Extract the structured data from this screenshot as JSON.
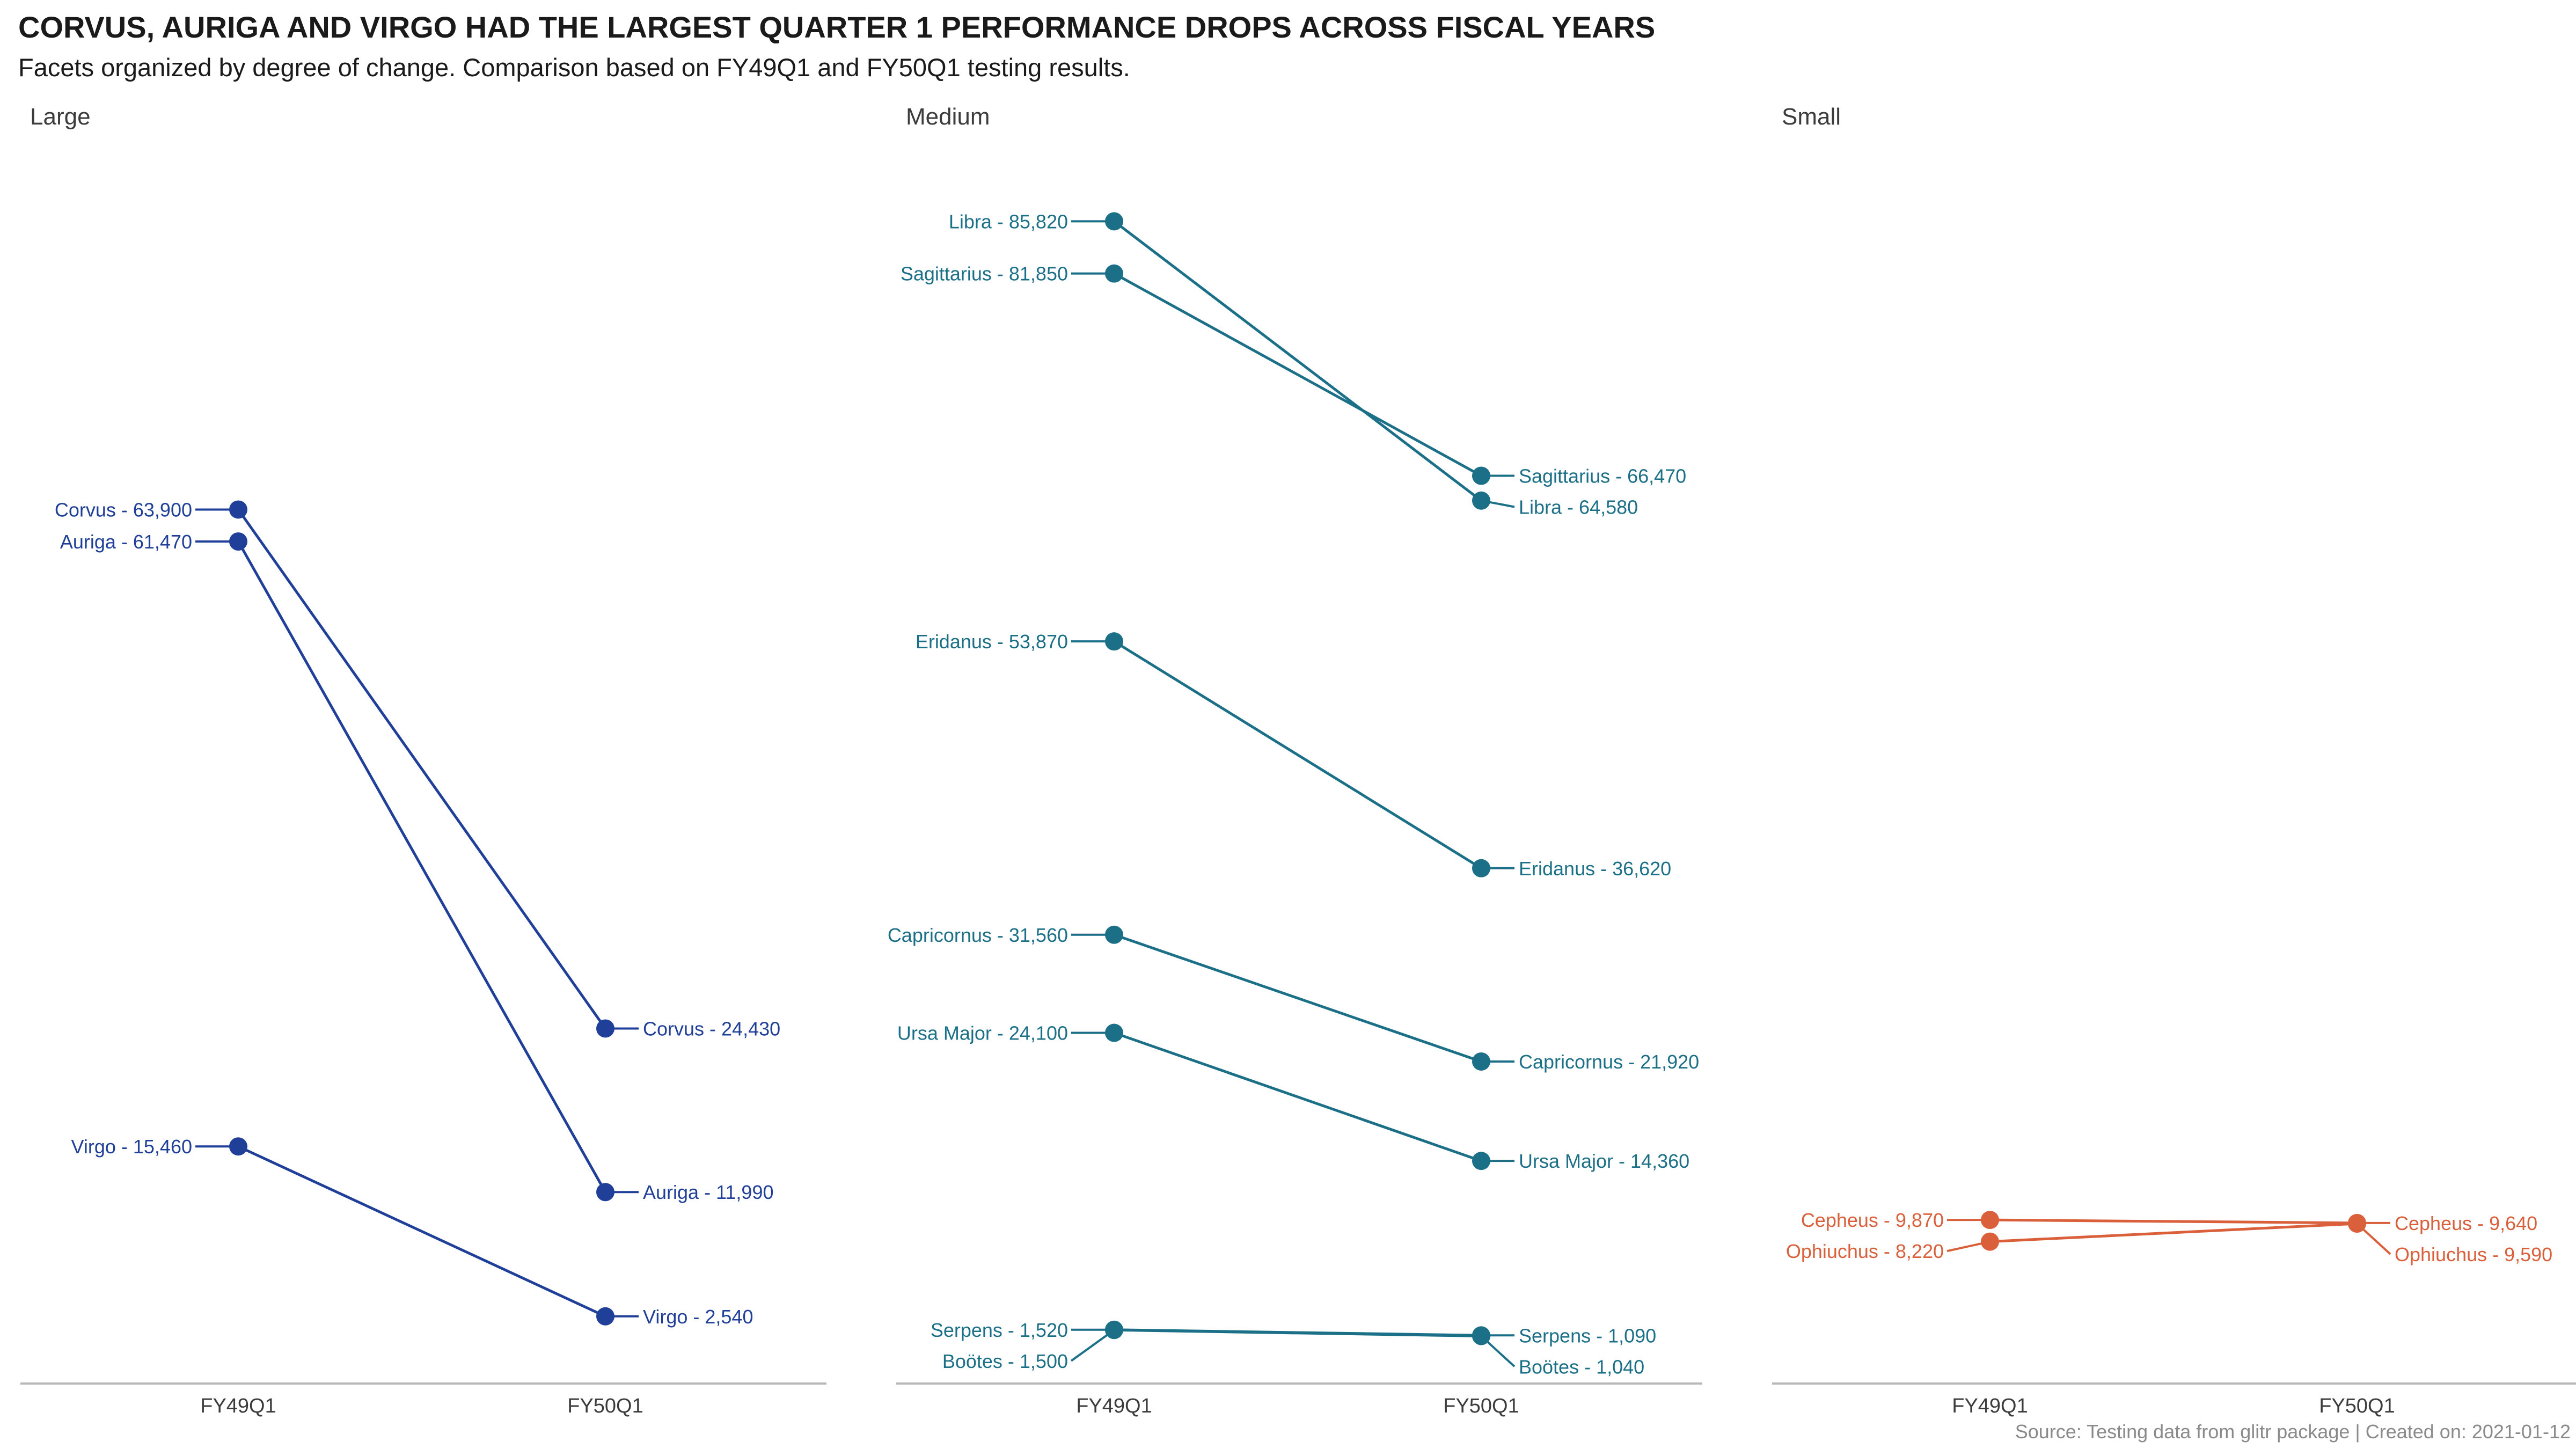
{
  "chart_data": {
    "type": "line",
    "title": "CORVUS, AURIGA AND VIRGO HAD THE LARGEST QUARTER 1 PERFORMANCE DROPS ACROSS FISCAL YEARS",
    "subtitle": "Facets organized by degree of change. Comparison based on FY49Q1 and FY50Q1 testing results.",
    "caption": "Source: Testing data from glitr package | Created on: 2021-01-12",
    "categories": [
      "FY49Q1",
      "FY50Q1"
    ],
    "ylim": [
      0,
      90000
    ],
    "grid": false,
    "facets": [
      {
        "name": "Large",
        "color": "#1f3f99",
        "series": [
          {
            "name": "Corvus",
            "values": [
              63900,
              24430
            ],
            "labels": [
              "Corvus - 63,900",
              "Corvus - 24,430"
            ]
          },
          {
            "name": "Auriga",
            "values": [
              61470,
              11990
            ],
            "labels": [
              "Auriga - 61,470",
              "Auriga - 11,990"
            ]
          },
          {
            "name": "Virgo",
            "values": [
              15460,
              2540
            ],
            "labels": [
              "Virgo - 15,460",
              "Virgo - 2,540"
            ]
          }
        ]
      },
      {
        "name": "Medium",
        "color": "#1b7088",
        "series": [
          {
            "name": "Libra",
            "values": [
              85820,
              64580
            ],
            "labels": [
              "Libra - 85,820",
              "Libra - 64,580"
            ]
          },
          {
            "name": "Sagittarius",
            "values": [
              81850,
              66470
            ],
            "labels": [
              "Sagittarius - 81,850",
              "Sagittarius - 66,470"
            ]
          },
          {
            "name": "Eridanus",
            "values": [
              53870,
              36620
            ],
            "labels": [
              "Eridanus - 53,870",
              "Eridanus - 36,620"
            ]
          },
          {
            "name": "Capricornus",
            "values": [
              31560,
              21920
            ],
            "labels": [
              "Capricornus - 31,560",
              "Capricornus - 21,920"
            ]
          },
          {
            "name": "Ursa Major",
            "values": [
              24100,
              14360
            ],
            "labels": [
              "Ursa Major - 24,100",
              "Ursa Major - 14,360"
            ]
          },
          {
            "name": "Serpens",
            "values": [
              1520,
              1090
            ],
            "labels": [
              "Serpens - 1,520",
              "Serpens - 1,090"
            ]
          },
          {
            "name": "Boötes",
            "values": [
              1500,
              1040
            ],
            "labels": [
              "Boötes - 1,500",
              "Boötes - 1,040"
            ]
          }
        ]
      },
      {
        "name": "Small",
        "color": "#d9603b",
        "series": [
          {
            "name": "Cepheus",
            "values": [
              9870,
              9640
            ],
            "labels": [
              "Cepheus - 9,870",
              "Cepheus - 9,640"
            ]
          },
          {
            "name": "Ophiuchus",
            "values": [
              8220,
              9590
            ],
            "labels": [
              "Ophiuchus - 8,220",
              "Ophiuchus - 9,590"
            ]
          }
        ]
      }
    ]
  }
}
